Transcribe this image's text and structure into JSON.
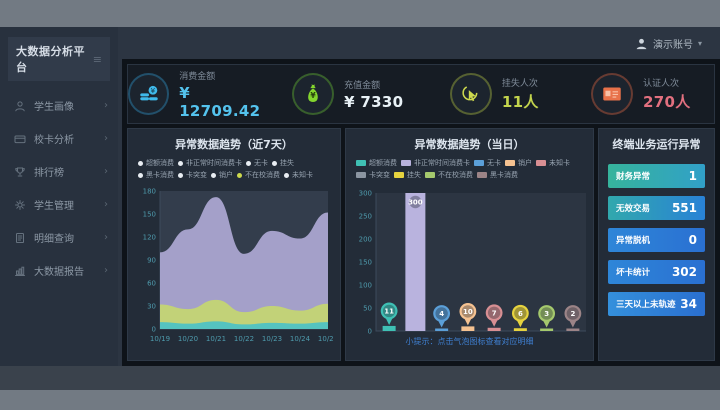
{
  "window": {
    "topbar_user": "演示账号",
    "caret": "▾"
  },
  "sidebar": {
    "title": "大数据分析平台",
    "arrow": "›",
    "items": [
      {
        "id": "student-portrait",
        "label": "学生画像",
        "icon": "user-icon"
      },
      {
        "id": "card-analysis",
        "label": "校卡分析",
        "icon": "card-icon"
      },
      {
        "id": "ranking",
        "label": "排行榜",
        "icon": "trophy-icon"
      },
      {
        "id": "student-manage",
        "label": "学生管理",
        "icon": "gear-icon"
      },
      {
        "id": "detail-query",
        "label": "明细查询",
        "icon": "document-icon"
      },
      {
        "id": "bigdata-report",
        "label": "大数据报告",
        "icon": "report-icon"
      }
    ]
  },
  "stats": [
    {
      "id": "consume-amount",
      "label": "消费金额",
      "value": "¥ 12709.42",
      "value_color": "#54c3ee",
      "ring_color": "#2e93c9",
      "icon": "coins-icon"
    },
    {
      "id": "recharge-amount",
      "label": "充值金额",
      "value": "¥ 7330",
      "value_color": "#e9f2f7",
      "ring_color": "#63b82a",
      "icon": "money-bag-icon"
    },
    {
      "id": "loss-report-count",
      "label": "挂失人次",
      "value": "11人",
      "value_color": "#c3d44d",
      "ring_color": "#aebf3a",
      "icon": "hand-click-icon"
    },
    {
      "id": "auth-count",
      "label": "认证人次",
      "value": "270人",
      "value_color": "#e2707f",
      "ring_color": "#d9603a",
      "icon": "id-card-icon"
    }
  ],
  "week_panel": {
    "title": "异常数据趋势（近7天）",
    "legend": [
      {
        "label": "超额消费",
        "dot": "#e8edf2"
      },
      {
        "label": "非正常时间消费卡",
        "dot": "#e8edf2"
      },
      {
        "label": "无卡",
        "dot": "#e8edf2"
      },
      {
        "label": "挂失",
        "dot": "#e8edf2"
      },
      {
        "label": "黑卡消费",
        "dot": "#e8edf2"
      },
      {
        "label": "卡突变",
        "dot": "#e8edf2"
      },
      {
        "label": "销户",
        "dot": "#e8edf2"
      },
      {
        "label": "不在校消费",
        "dot": "#cdd94e"
      },
      {
        "label": "未知卡",
        "dot": "#e8edf2"
      }
    ]
  },
  "day_panel": {
    "title": "异常数据趋势（当日）",
    "hint": "小提示：点击气泡图标查看对应明细",
    "legend": [
      {
        "label": "超额消费",
        "color": "#3fc0b4"
      },
      {
        "label": "非正常时间消费卡",
        "color": "#b9b3de"
      },
      {
        "label": "无卡",
        "color": "#5b9fd8"
      },
      {
        "label": "销户",
        "color": "#f5c291"
      },
      {
        "label": "未知卡",
        "color": "#d88f93"
      },
      {
        "label": "卡突变",
        "color": "#8b95a1"
      },
      {
        "label": "挂失",
        "color": "#e6d33f"
      },
      {
        "label": "不在校消费",
        "color": "#a5c96d"
      },
      {
        "label": "黑卡消费",
        "color": "#9c8487"
      }
    ]
  },
  "terminal_panel": {
    "title": "终端业务运行异常",
    "items": [
      {
        "label": "财务异常",
        "value": "1",
        "from": "#36b49c",
        "to": "#31a0c8"
      },
      {
        "label": "无效交易",
        "value": "551",
        "from": "#31a8ad",
        "to": "#2982d6"
      },
      {
        "label": "异常脱机",
        "value": "0",
        "from": "#2e86d8",
        "to": "#2a70d2"
      },
      {
        "label": "坏卡统计",
        "value": "302",
        "from": "#2e86d8",
        "to": "#2a70d2"
      },
      {
        "label": "三天以上未轨迹",
        "value": "34",
        "from": "#3490dc",
        "to": "#2a6fd0"
      }
    ]
  },
  "chart_data": [
    {
      "type": "area",
      "title": "异常数据趋势（近7天）",
      "x": [
        "10/19",
        "10/20",
        "10/21",
        "10/22",
        "10/23",
        "10/24",
        "10/25"
      ],
      "series": [
        {
          "name": "非正常时间消费卡",
          "color": "#b4aedb",
          "values": [
            100,
            130,
            172,
            98,
            128,
            118,
            152
          ]
        },
        {
          "name": "不在校消费",
          "color": "#c6d86c",
          "values": [
            32,
            26,
            38,
            22,
            30,
            24,
            33
          ]
        },
        {
          "name": "超额消费",
          "color": "#46c0c9",
          "values": [
            9,
            7,
            10,
            6,
            8,
            7,
            9
          ]
        }
      ],
      "ylim": [
        0,
        180
      ],
      "yticks": [
        0,
        30,
        60,
        90,
        120,
        150,
        180
      ],
      "legend_position": "top",
      "grid": false
    },
    {
      "type": "bar",
      "title": "异常数据趋势（当日）",
      "categories": [
        "超额消费",
        "非正常时间消费卡",
        "无卡",
        "销户",
        "未知卡",
        "挂失",
        "不在校消费",
        "黑卡消费"
      ],
      "values": [
        11,
        300,
        4,
        10,
        7,
        6,
        3,
        2
      ],
      "colors": [
        "#3fc0b4",
        "#b9b3de",
        "#5b9fd8",
        "#f5c291",
        "#d88f93",
        "#e6d33f",
        "#a5c96d",
        "#9c8487"
      ],
      "ylim": [
        0,
        300
      ],
      "yticks": [
        0,
        50,
        100,
        150,
        200,
        250,
        300
      ],
      "grid": false
    }
  ]
}
